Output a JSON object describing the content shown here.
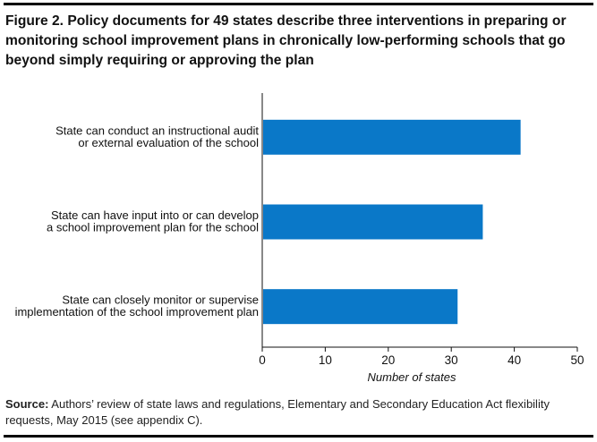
{
  "title": "Figure 2. Policy documents for 49 states describe three interventions in preparing or monitoring school improvement plans in chronically low-performing schools that go beyond simply requiring or approving the plan",
  "source": {
    "label": "Source:",
    "text": " Authors’ review of state laws and regulations, Elementary and Secondary Education Act flexibility requests, May 2015 (see appendix C)."
  },
  "colors": {
    "bar": "#0a78c8",
    "axis": "#111111",
    "rule": "#000000"
  },
  "chart_data": {
    "type": "bar",
    "orientation": "horizontal",
    "categories": [
      [
        "State can conduct an instructional audit",
        "or external evaluation of the school"
      ],
      [
        "State can have input into or can develop",
        "a school improvement plan for the school"
      ],
      [
        "State can closely monitor or supervise",
        "implementation of the school improvement plan"
      ]
    ],
    "values": [
      41,
      35,
      31
    ],
    "xlabel": "Number of states",
    "xlim": [
      0,
      50
    ],
    "xticks": [
      0,
      10,
      20,
      30,
      40,
      50
    ],
    "grid": false
  }
}
